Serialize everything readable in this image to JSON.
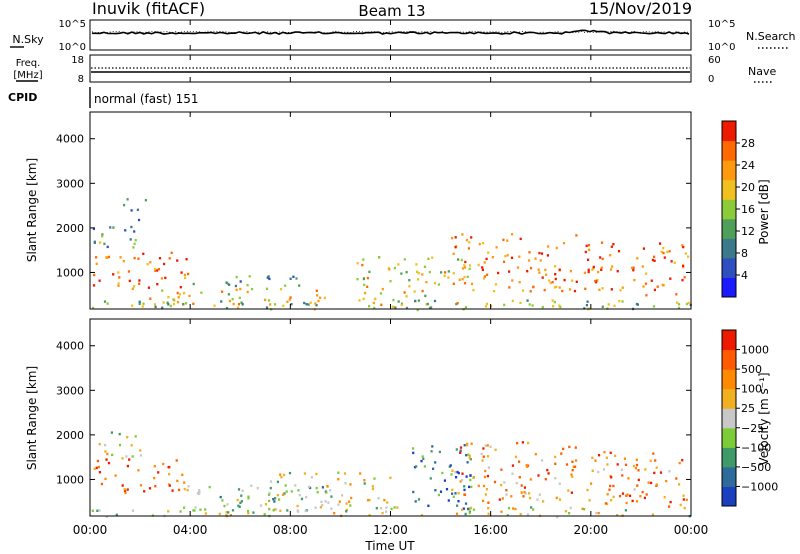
{
  "header": {
    "station": "Inuvik (fitACF)",
    "beam": "Beam 13",
    "date": "15/Nov/2019"
  },
  "top_panels": {
    "nsky_label": "N.Sky",
    "nsearch_label": "N.Search",
    "freq_label_line1": "Freq.",
    "freq_label_line2": "[MHz]",
    "nave_label": "Nave",
    "cpid_label": "CPID",
    "cpid_text": "normal (fast) 151",
    "noise_left_ticks": [
      "10^5",
      "10^0"
    ],
    "noise_right_ticks": [
      "10^5",
      "10^0"
    ],
    "freq_ticks": [
      "18",
      "8"
    ],
    "nave_ticks": [
      "60",
      "0"
    ]
  },
  "x_axis": {
    "label": "Time UT",
    "ticks": [
      "00:00",
      "04:00",
      "08:00",
      "12:00",
      "16:00",
      "20:00",
      "00:00"
    ],
    "tick_hours": [
      0,
      4,
      8,
      12,
      16,
      20,
      24
    ]
  },
  "chart_data": [
    {
      "type": "heatmap",
      "parameter": "Power",
      "ylabel": "Slant Range [km]",
      "xlabel": "",
      "x_range_hours": [
        0,
        24
      ],
      "y_range_km": [
        180,
        4600
      ],
      "y_ticks": [
        1000,
        2000,
        3000,
        4000
      ],
      "colorbar": {
        "label": "Power [dB]",
        "range": [
          0,
          32
        ],
        "ticks": [
          4,
          8,
          12,
          16,
          20,
          24,
          28
        ],
        "colors": [
          "#1a1aff",
          "#2e4fbf",
          "#3a7a8a",
          "#4f9f5a",
          "#8ccc3a",
          "#f0c020",
          "#ff9a10",
          "#ff6a00",
          "#ee1a00"
        ]
      },
      "scatter_regions": [
        {
          "t0": 0.1,
          "t1": 3.9,
          "r0": 650,
          "r1": 1500,
          "level": 0.85
        },
        {
          "t0": 0.1,
          "t1": 2.0,
          "r0": 1500,
          "r1": 2100,
          "level": 0.35
        },
        {
          "t0": 1.2,
          "t1": 2.2,
          "r0": 2200,
          "r1": 2700,
          "level": 0.25
        },
        {
          "t0": 3.8,
          "t1": 8.5,
          "r0": 700,
          "r1": 950,
          "level": 0.3
        },
        {
          "t0": 2.0,
          "t1": 9.5,
          "r0": 300,
          "r1": 700,
          "level": 0.65
        },
        {
          "t0": 10.5,
          "t1": 15.3,
          "r0": 300,
          "r1": 1400,
          "level": 0.6
        },
        {
          "t0": 14.4,
          "t1": 19.4,
          "r0": 600,
          "r1": 1900,
          "level": 0.78
        },
        {
          "t0": 19.7,
          "t1": 23.9,
          "r0": 500,
          "r1": 1700,
          "level": 0.82
        },
        {
          "t0": 0.0,
          "t1": 24.0,
          "r0": 180,
          "r1": 400,
          "level": 0.45
        }
      ]
    },
    {
      "type": "heatmap",
      "parameter": "Velocity",
      "ylabel": "Slant Range [km]",
      "xlabel": "Time UT",
      "x_range_hours": [
        0,
        24
      ],
      "y_range_km": [
        180,
        4600
      ],
      "y_ticks": [
        1000,
        2000,
        3000,
        4000
      ],
      "colorbar": {
        "label": "Velocity [m s⁻¹]",
        "ticks": [
          "1000",
          "500",
          "100",
          "25",
          "−25",
          "−100",
          "−500",
          "−1000"
        ],
        "colors": [
          "#1a3fbf",
          "#2e6a9a",
          "#3f9a6a",
          "#7ccc3a",
          "#c8c8c8",
          "#f0b020",
          "#ff8a00",
          "#ff5a00",
          "#ee1a00"
        ]
      },
      "scatter_regions": [
        {
          "t0": 0.1,
          "t1": 3.9,
          "r0": 700,
          "r1": 1500,
          "level": 0.8
        },
        {
          "t0": 0.1,
          "t1": 2.0,
          "r0": 1500,
          "r1": 2100,
          "level": 0.45
        },
        {
          "t0": 3.8,
          "t1": 9.5,
          "r0": 300,
          "r1": 900,
          "level": 0.35
        },
        {
          "t0": 7.0,
          "t1": 12.0,
          "r0": 300,
          "r1": 1200,
          "level": 0.5
        },
        {
          "t0": 12.5,
          "t1": 15.3,
          "r0": 300,
          "r1": 1800,
          "level": 0.25
        },
        {
          "t0": 14.4,
          "t1": 19.4,
          "r0": 500,
          "r1": 1900,
          "level": 0.72
        },
        {
          "t0": 19.7,
          "t1": 23.9,
          "r0": 400,
          "r1": 1700,
          "level": 0.75
        },
        {
          "t0": 0.0,
          "t1": 24.0,
          "r0": 180,
          "r1": 400,
          "level": 0.5
        }
      ]
    }
  ]
}
